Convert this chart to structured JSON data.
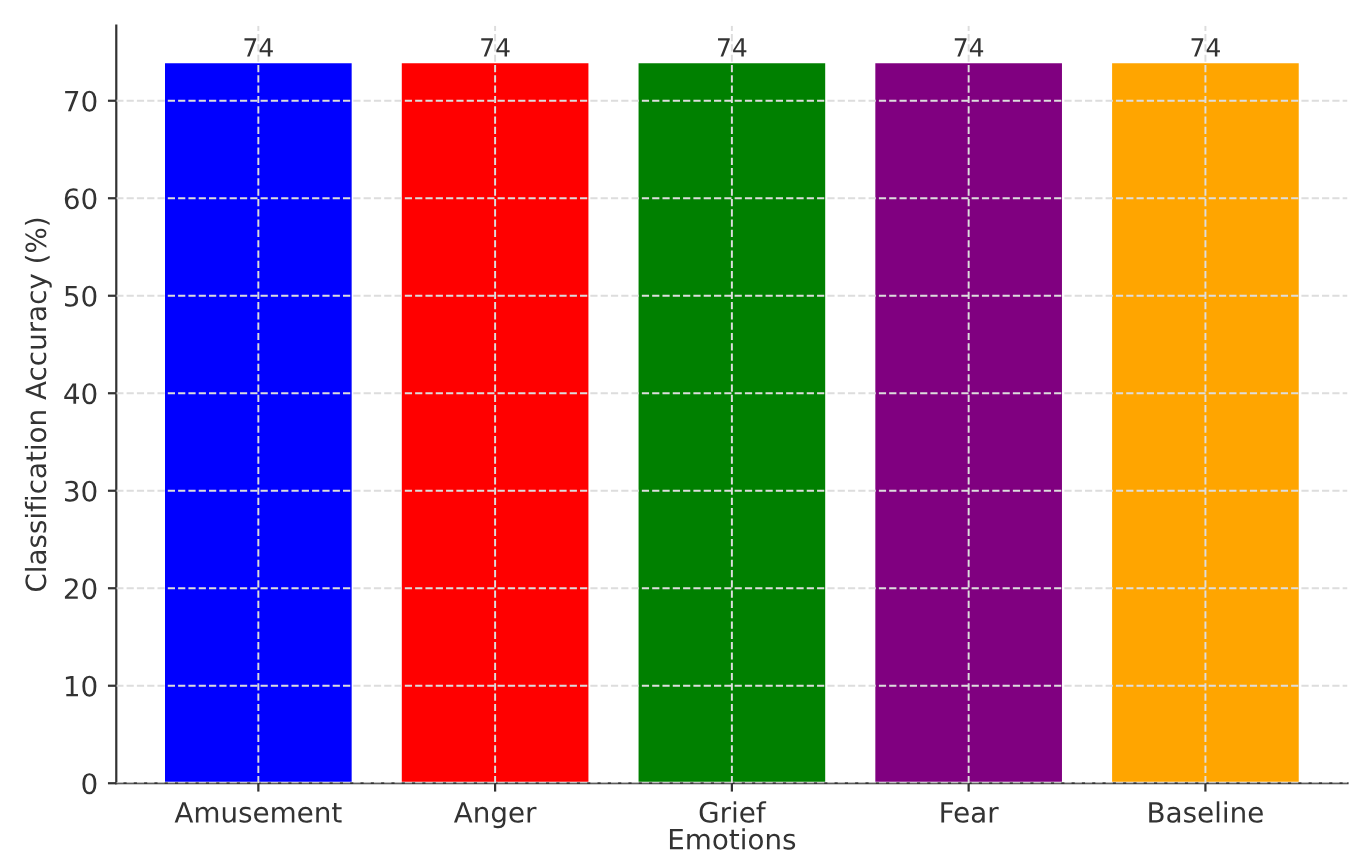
{
  "chart_data": {
    "type": "bar",
    "xlabel": "Emotions",
    "ylabel": "Classification Accuracy (%)",
    "categories": [
      "Amusement",
      "Anger",
      "Grief",
      "Fear",
      "Baseline"
    ],
    "values": [
      74,
      74,
      74,
      74,
      74
    ],
    "colors": [
      "#0000ff",
      "#ff0000",
      "#008000",
      "#800080",
      "#ffa500"
    ],
    "ylim": [
      0,
      77.7
    ],
    "yticks": [
      0,
      10,
      20,
      30,
      40,
      50,
      60,
      70
    ],
    "grid": true,
    "data_labels": true
  }
}
